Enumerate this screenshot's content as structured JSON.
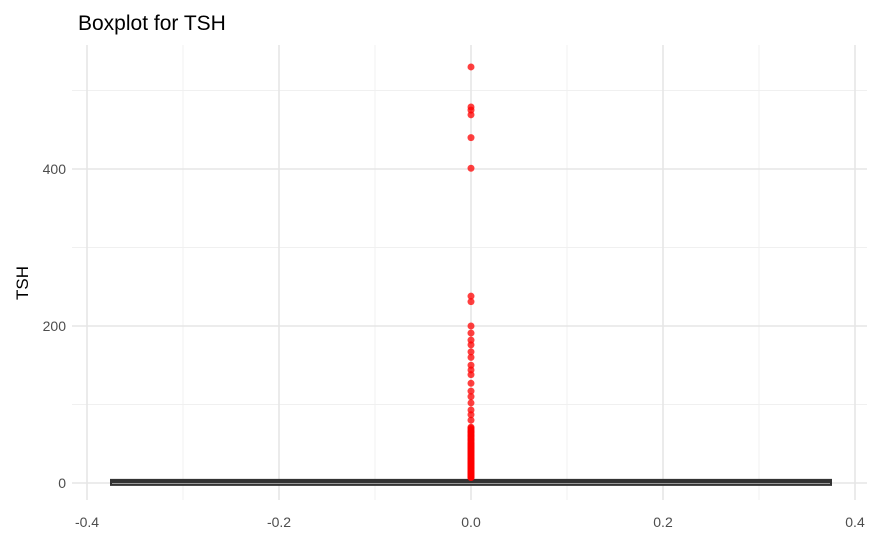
{
  "chart_data": {
    "type": "boxplot",
    "title": "Boxplot for TSH",
    "xlabel": "",
    "ylabel": "TSH",
    "xlim": [
      -0.4,
      0.4
    ],
    "ylim": [
      0,
      530
    ],
    "x_ticks": [
      -0.4,
      -0.2,
      0.0,
      0.2,
      0.4
    ],
    "x_tick_labels": [
      "-0.4",
      "-0.2",
      "0.0",
      "0.2",
      "0.4"
    ],
    "y_ticks": [
      0,
      200,
      400
    ],
    "y_tick_labels": [
      "0",
      "200",
      "400"
    ],
    "grid": true,
    "box": {
      "x_center": 0,
      "x_range": [
        -0.375,
        0.375
      ],
      "q1": 0.5,
      "median": 1.4,
      "q3": 2.7,
      "whisker_low": 0.005,
      "whisker_high": 6,
      "color": "#333333"
    },
    "outliers": {
      "x": 0,
      "color": "#ff0000",
      "values": [
        530,
        479,
        475,
        469,
        440,
        401,
        238,
        231,
        200,
        191,
        182,
        176,
        167,
        160,
        150,
        144,
        138,
        127,
        117,
        110,
        102,
        93,
        87,
        80,
        71,
        65,
        60,
        55,
        50,
        47,
        44,
        41,
        38,
        35,
        32,
        30,
        28,
        26,
        24,
        22,
        20,
        18,
        16,
        14,
        13,
        12,
        11,
        10,
        9,
        8,
        7
      ]
    }
  }
}
